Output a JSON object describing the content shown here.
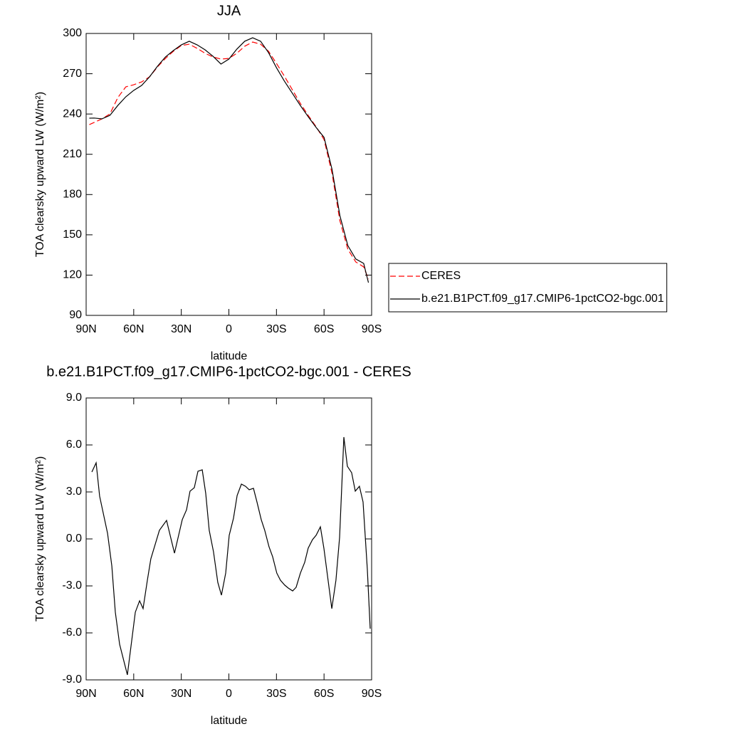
{
  "chart_data": [
    {
      "type": "line",
      "title": "JJA",
      "x_label": "latitude",
      "y_label": "TOA clearsky upward LW (W/m²)",
      "xlim": [
        90,
        -90
      ],
      "ylim": [
        90,
        300
      ],
      "xticks": [
        {
          "value": 90,
          "label": "90N"
        },
        {
          "value": 60,
          "label": "60N"
        },
        {
          "value": 30,
          "label": "30N"
        },
        0,
        {
          "value": -30,
          "label": "30S"
        },
        {
          "value": -60,
          "label": "60S"
        },
        {
          "value": -90,
          "label": "90S"
        }
      ],
      "yticks": [
        90,
        120,
        150,
        180,
        210,
        240,
        270,
        300
      ],
      "legend": "right",
      "x": [
        88,
        85,
        80,
        75,
        70,
        65,
        60,
        55,
        50,
        45,
        40,
        35,
        30,
        25,
        20,
        15,
        10,
        5,
        0,
        -5,
        -10,
        -15,
        -20,
        -25,
        -30,
        -35,
        -40,
        -45,
        -50,
        -55,
        -60,
        -65,
        -70,
        -75,
        -80,
        -85,
        -88
      ],
      "series": [
        {
          "name": "CERES",
          "color": "#ff0000",
          "dash": true,
          "values": [
            232.1,
            233.7,
            236.4,
            240.1,
            252.3,
            260.2,
            261.8,
            263.9,
            267.7,
            275.1,
            281.4,
            286.7,
            291,
            292,
            288.9,
            285.2,
            282.5,
            280.9,
            281.4,
            285.2,
            290.5,
            293.6,
            292,
            286.7,
            277.7,
            268.2,
            258.1,
            248,
            239,
            230.5,
            221,
            196.1,
            160.5,
            139.3,
            129.8,
            126.1,
            117
          ]
        },
        {
          "name": "b.e21.B1PCT.f09_g17.CMIP6-1pctCO2-bgc.001",
          "color": "#000000",
          "dash": false,
          "values": [
            236.9,
            237,
            236.4,
            239,
            246.4,
            252.8,
            257.6,
            261.3,
            267.7,
            275.6,
            282.5,
            287.3,
            291.5,
            294.2,
            291.5,
            287.8,
            283,
            277.2,
            280.9,
            288.3,
            294.2,
            296.8,
            294.2,
            285.7,
            274.5,
            264.5,
            255.5,
            246.4,
            238,
            230,
            222.6,
            199,
            164.3,
            142,
            132,
            128.7,
            114.4
          ]
        }
      ]
    },
    {
      "type": "line",
      "title": "b.e21.B1PCT.f09_g17.CMIP6-1pctCO2-bgc.001 - CERES",
      "x_label": "latitude",
      "y_label": "TOA clearsky upward LW (W/m²)",
      "xlim": [
        90,
        -90
      ],
      "ylim": [
        -9,
        9
      ],
      "xticks": [
        {
          "value": 90,
          "label": "90N"
        },
        {
          "value": 60,
          "label": "60N"
        },
        {
          "value": 30,
          "label": "30N"
        },
        0,
        {
          "value": -30,
          "label": "30S"
        },
        {
          "value": -60,
          "label": "60S"
        },
        {
          "value": -90,
          "label": "90S"
        }
      ],
      "yticks": [
        {
          "value": -9,
          "label": "-9.0"
        },
        {
          "value": -6,
          "label": "-6.0"
        },
        {
          "value": -3,
          "label": "-3.0"
        },
        {
          "value": 0,
          "label": "0.0"
        },
        {
          "value": 3,
          "label": "3.0"
        },
        {
          "value": 6,
          "label": "6.0"
        },
        {
          "value": 9,
          "label": "9.0"
        }
      ],
      "x": [
        86.4,
        83.7,
        81.5,
        76.5,
        73.8,
        71.6,
        68.9,
        64.0,
        59.0,
        56.3,
        54.1,
        51.4,
        49.2,
        46.5,
        43.8,
        39.3,
        34.3,
        29.4,
        26.7,
        24.5,
        21.8,
        19.5,
        16.8,
        14.6,
        12.4,
        9.7,
        7.0,
        4.7,
        2.0,
        -0.2,
        -2.9,
        -5.2,
        -7.9,
        -10.5,
        -12.8,
        -15.5,
        -17.7,
        -20.4,
        -22.6,
        -25.3,
        -27.6,
        -30.2,
        -32.5,
        -35.2,
        -37.5,
        -40.2,
        -42.4,
        -45.1,
        -47.8,
        -50.0,
        -52.7,
        -55.0,
        -57.7,
        -59.9,
        -64.9,
        -67.5,
        -69.8,
        -72.5,
        -74.7,
        -77.4,
        -79.7,
        -82.3,
        -84.6,
        -87.3,
        -89.1
      ],
      "series": [
        {
          "color": "#000000",
          "dash": false,
          "values": [
            4.27,
            4.86,
            2.73,
            0.36,
            -1.73,
            -4.68,
            -6.73,
            -8.68,
            -4.68,
            -3.95,
            -4.45,
            -2.64,
            -1.27,
            -0.36,
            0.55,
            1.18,
            -0.91,
            1.23,
            1.86,
            3.05,
            3.27,
            4.32,
            4.41,
            2.91,
            0.55,
            -0.82,
            -2.77,
            -3.59,
            -2.18,
            0.23,
            1.32,
            2.77,
            3.5,
            3.36,
            3.14,
            3.23,
            2.36,
            1.23,
            0.55,
            -0.5,
            -1.14,
            -2.18,
            -2.64,
            -2.95,
            -3.14,
            -3.32,
            -3.09,
            -2.18,
            -1.5,
            -0.59,
            -0.05,
            0.23,
            0.77,
            -0.59,
            -4.45,
            -2.64,
            0.09,
            6.5,
            4.64,
            4.23,
            3.05,
            3.36,
            2.36,
            -1.95,
            -5.73
          ]
        }
      ]
    }
  ]
}
